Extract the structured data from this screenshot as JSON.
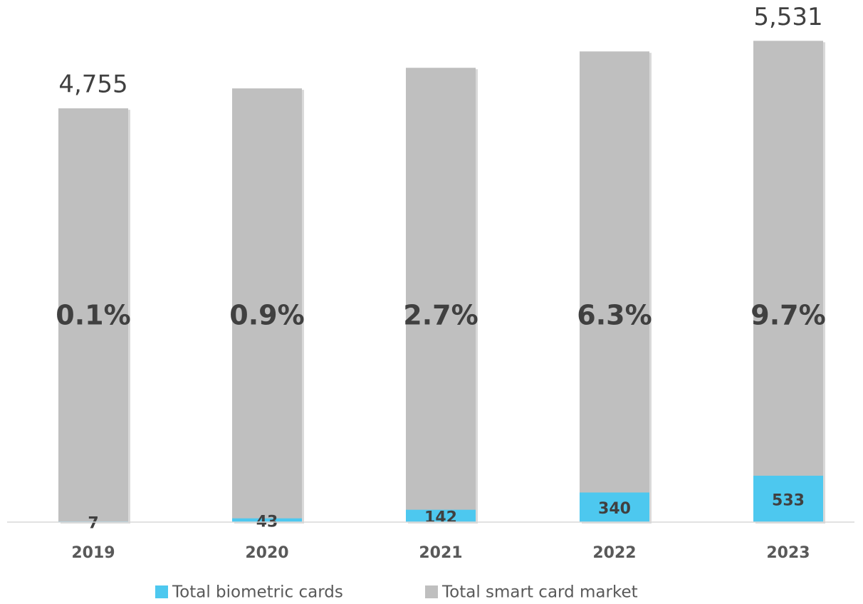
{
  "chart_data": {
    "type": "bar",
    "overlap": true,
    "categories": [
      "2019",
      "2020",
      "2021",
      "2022",
      "2023"
    ],
    "series": [
      {
        "name": "Total smart card market",
        "color": "#bfbfbf",
        "values": [
          4755,
          4984,
          5221,
          5409,
          5531
        ],
        "value_labels": [
          "4,755",
          null,
          null,
          null,
          "5,531"
        ]
      },
      {
        "name": "Total biometric cards",
        "color": "#4dc8ef",
        "values": [
          7,
          43,
          142,
          340,
          533
        ]
      }
    ],
    "annotations": [
      "0.1%",
      "0.9%",
      "2.7%",
      "6.3%",
      "9.7%"
    ],
    "ylim": [
      0,
      6000
    ],
    "legend": "bottom"
  }
}
